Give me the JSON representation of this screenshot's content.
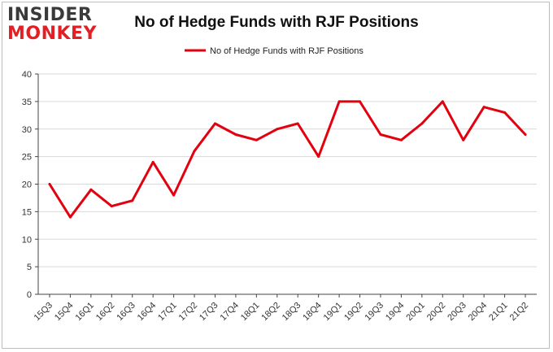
{
  "logo": {
    "line1": "INSIDER",
    "line2": "MONKEY"
  },
  "colors": {
    "line": "#e3000f",
    "grid": "#d9d9d9",
    "axis": "#444444"
  },
  "chart_data": {
    "type": "line",
    "title": "No of Hedge Funds with RJF Positions",
    "xlabel": "",
    "ylabel": "",
    "ylim": [
      0,
      40
    ],
    "yticks": [
      0,
      5,
      10,
      15,
      20,
      25,
      30,
      35,
      40
    ],
    "grid": true,
    "legend_position": "top-center",
    "categories": [
      "15Q3",
      "15Q4",
      "16Q1",
      "16Q2",
      "16Q3",
      "16Q4",
      "17Q1",
      "17Q2",
      "17Q3",
      "17Q4",
      "18Q1",
      "18Q2",
      "18Q3",
      "18Q4",
      "19Q1",
      "19Q2",
      "19Q3",
      "19Q4",
      "20Q1",
      "20Q2",
      "20Q3",
      "20Q4",
      "21Q1",
      "21Q2"
    ],
    "series": [
      {
        "name": "No of Hedge Funds with RJF Positions",
        "values": [
          20,
          14,
          19,
          16,
          17,
          24,
          18,
          26,
          31,
          29,
          28,
          30,
          31,
          25,
          35,
          35,
          29,
          28,
          31,
          35,
          28,
          34,
          33,
          29
        ]
      }
    ]
  }
}
